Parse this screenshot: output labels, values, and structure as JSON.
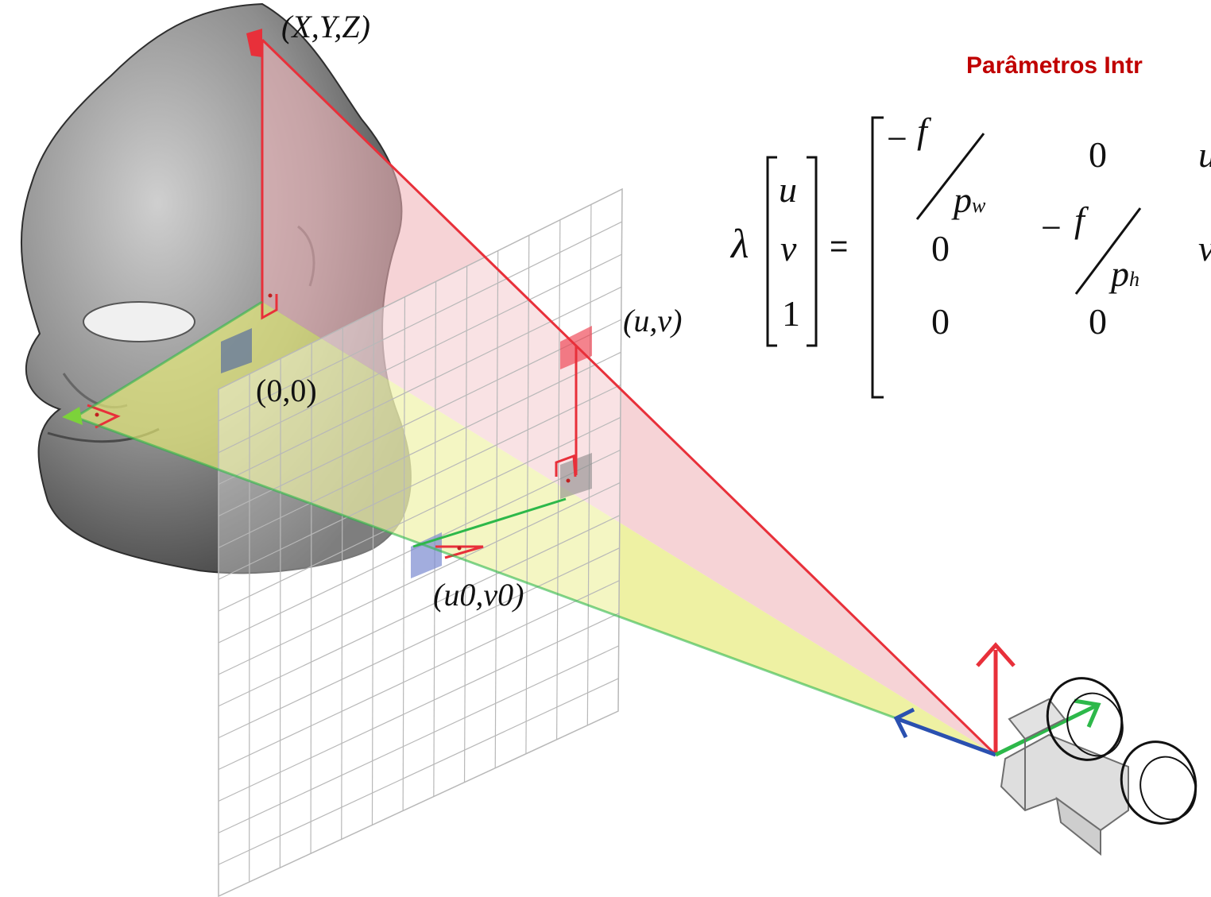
{
  "labels": {
    "world_point": "(X,Y,Z)",
    "image_point": "(u,v)",
    "origin": "(0,0)",
    "principal_point": "(u0,v0)"
  },
  "section_title": "Parâmetros Intr",
  "equation": {
    "lambda": "λ",
    "vector": [
      "u",
      "v",
      "1"
    ],
    "equals": "=",
    "minus": "−",
    "f": "f",
    "p_w": "p",
    "p_w_sub": "w",
    "p_h": "p",
    "p_h_sub": "h",
    "zero": "0",
    "col3_row1": "u",
    "col3_row2": "v"
  },
  "colors": {
    "title": "#c00000",
    "ray_red": "#e8303a",
    "ray_green": "#2db84a",
    "axis_blue": "#2a50b0",
    "cone_yellow": "#e6ea78",
    "cone_pink": "#f0b4b8"
  },
  "icons": [
    "head-model",
    "camera-model",
    "image-plane-grid"
  ]
}
